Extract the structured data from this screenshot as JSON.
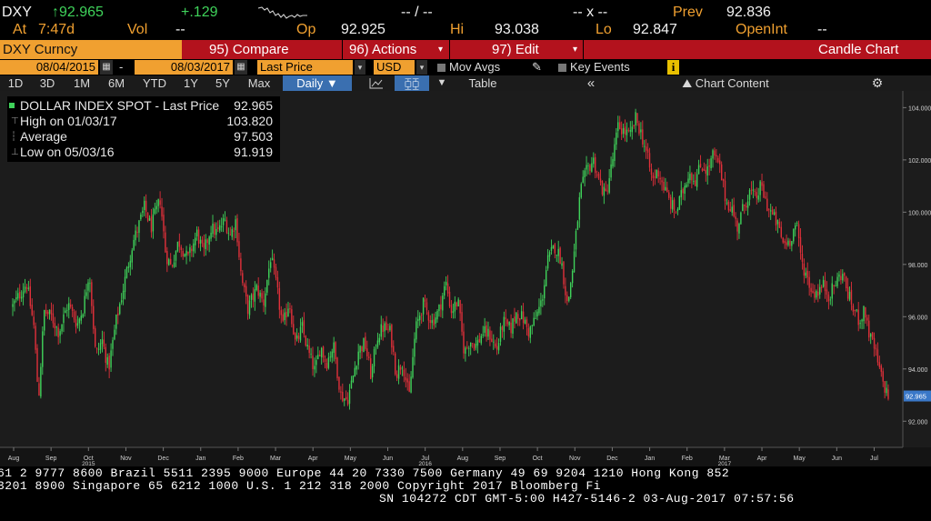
{
  "quote": {
    "ticker": "DXY",
    "last": "92.965",
    "change": "+.129",
    "time_label": "At",
    "time": "7:47d",
    "vol_label": "Vol",
    "vol_value": "--",
    "op_label": "Op",
    "op_value": "92.925",
    "hi_label": "Hi",
    "hi_value": "93.038",
    "lo_label": "Lo",
    "lo_value": "92.847",
    "bidask": "-- / --",
    "x_quote": "-- x --",
    "prev_label": "Prev",
    "prev_value": "92.836",
    "openint_label": "OpenInt",
    "openint_value": "--"
  },
  "cmdbar": {
    "security": "DXY Curncy",
    "compare": "95) Compare",
    "actions": "96) Actions",
    "edit": "97) Edit",
    "title": "Candle Chart"
  },
  "params": {
    "start_date": "08/04/2015",
    "dash": "-",
    "end_date": "08/03/2017",
    "field": "Last Price",
    "currency": "USD",
    "mov_avgs": "Mov Avgs",
    "key_events": "Key Events",
    "info": "i"
  },
  "periods": [
    "1D",
    "3D",
    "1M",
    "6M",
    "YTD",
    "1Y",
    "5Y",
    "Max"
  ],
  "toolbar": {
    "frequency": "Daily",
    "table": "Table",
    "collapse": "«",
    "chart_content": "Chart Content",
    "settings_icon": "gear-icon"
  },
  "legend": {
    "series": "DOLLAR INDEX SPOT - Last Price",
    "series_value": "92.965",
    "high_label": "High on 01/03/17",
    "high_value": "103.820",
    "avg_label": "Average",
    "avg_value": "97.503",
    "low_label": "Low on 05/03/16",
    "low_value": "91.919"
  },
  "ticker_lines": {
    "line1": "61 2 9777 8600 Brazil 5511 2395 9000 Europe 44 20 7330 7500 Germany 49 69 9204 1210 Hong Kong 852",
    "line2": "3201 8900        Singapore 65 6212 1000       U.S. 1 212 318 2000         Copyright 2017 Bloomberg Fi",
    "line3": "SN 104272 CDT  GMT-5:00 H427-5146-2 03-Aug-2017 07:57:56"
  },
  "colors": {
    "up": "#3fd25a",
    "down": "#e0303a",
    "accent": "#f0a030",
    "cmdbar": "#b3121d",
    "chart_bg": "#1c1c1c",
    "last_tag": "#3a78c8"
  },
  "chart_data": {
    "type": "candlestick",
    "title": "",
    "series_name": "DOLLAR INDEX SPOT - Last Price",
    "xlabel": "",
    "ylabel": "",
    "ylim": [
      91.0,
      104.5
    ],
    "yticks": [
      "104.000",
      "102.000",
      "100.000",
      "98.000",
      "96.000",
      "94.000",
      "92.000"
    ],
    "ytick_values": [
      104,
      102,
      100,
      98,
      96,
      94,
      92
    ],
    "last_tag": "92.965",
    "last_value": 92.965,
    "xticks": [
      "Aug",
      "Sep",
      "Oct",
      "Nov",
      "Dec",
      "Jan",
      "Feb",
      "Mar",
      "Apr",
      "May",
      "Jun",
      "Jul",
      "Aug",
      "Sep",
      "Oct",
      "Nov",
      "Dec",
      "Jan",
      "Feb",
      "Mar",
      "Apr",
      "May",
      "Jun",
      "Jul"
    ],
    "year_labels": [
      {
        "after_tick": "Oct",
        "tick_index": 2,
        "label": "2015"
      },
      {
        "after_tick": "Jul",
        "tick_index": 11,
        "label": "2016"
      },
      {
        "after_tick": "Mar",
        "tick_index": 19,
        "label": "2017"
      }
    ],
    "grid": false,
    "y_axis_side": "right",
    "close_path": [
      [
        0,
        96.4
      ],
      [
        1.5,
        97.3
      ],
      [
        2.3,
        95.6
      ],
      [
        2.8,
        92.8
      ],
      [
        3.4,
        96.2
      ],
      [
        4.2,
        96.0
      ],
      [
        5,
        95.4
      ],
      [
        6,
        96.5
      ],
      [
        7,
        95.7
      ],
      [
        7.7,
        96.4
      ],
      [
        8.3,
        97.8
      ],
      [
        9,
        94.5
      ],
      [
        9.7,
        95.1
      ],
      [
        10.4,
        94.0
      ],
      [
        11.2,
        95.8
      ],
      [
        12,
        97.1
      ],
      [
        13,
        98.8
      ],
      [
        13.5,
        99.3
      ],
      [
        14.3,
        100.2
      ],
      [
        15,
        99.4
      ],
      [
        16,
        100.5
      ],
      [
        16.6,
        98.4
      ],
      [
        17.2,
        97.9
      ],
      [
        18,
        98.9
      ],
      [
        19,
        98.2
      ],
      [
        20,
        99.2
      ],
      [
        20.7,
        98.4
      ],
      [
        21.5,
        99.4
      ],
      [
        22.2,
        99.2
      ],
      [
        23,
        99.7
      ],
      [
        23.6,
        99.1
      ],
      [
        24.2,
        99.7
      ],
      [
        24.8,
        97.5
      ],
      [
        25.5,
        96.3
      ],
      [
        26.5,
        97.1
      ],
      [
        27.2,
        96.5
      ],
      [
        28,
        98.3
      ],
      [
        28.6,
        97.2
      ],
      [
        29.3,
        95.6
      ],
      [
        30,
        96.6
      ],
      [
        30.7,
        94.9
      ],
      [
        31.4,
        95.6
      ],
      [
        32.1,
        94.6
      ],
      [
        32.8,
        93.9
      ],
      [
        33.4,
        94.9
      ],
      [
        34,
        94.2
      ],
      [
        34.8,
        94.9
      ],
      [
        35.6,
        93.0
      ],
      [
        36.3,
        92.8
      ],
      [
        36.8,
        93.5
      ],
      [
        37.5,
        94.7
      ],
      [
        38.2,
        95.0
      ],
      [
        38.9,
        93.7
      ],
      [
        39.5,
        95.2
      ],
      [
        40.2,
        95.6
      ],
      [
        41,
        95.4
      ],
      [
        41.6,
        93.8
      ],
      [
        42.3,
        94.3
      ],
      [
        43,
        92.9
      ],
      [
        43.7,
        95.5
      ],
      [
        44.5,
        96.5
      ],
      [
        45.5,
        95.8
      ],
      [
        46.2,
        96.2
      ],
      [
        47,
        97.3
      ],
      [
        47.6,
        96.2
      ],
      [
        48.3,
        96.6
      ],
      [
        49,
        94.6
      ],
      [
        49.6,
        95.1
      ],
      [
        50.3,
        94.9
      ],
      [
        51,
        95.4
      ],
      [
        51.8,
        95.3
      ],
      [
        52.5,
        94.7
      ],
      [
        53.2,
        95.8
      ],
      [
        54,
        95.5
      ],
      [
        54.7,
        96.2
      ],
      [
        55.4,
        95.9
      ],
      [
        56,
        95.4
      ],
      [
        56.7,
        95.9
      ],
      [
        57.4,
        96.6
      ],
      [
        58,
        98.1
      ],
      [
        58.8,
        98.7
      ],
      [
        59.5,
        98.2
      ],
      [
        60.2,
        96.4
      ],
      [
        60.8,
        98.0
      ],
      [
        61.6,
        100.8
      ],
      [
        62.3,
        101.6
      ],
      [
        63,
        102.0
      ],
      [
        63.6,
        101.2
      ],
      [
        64.3,
        100.6
      ],
      [
        65,
        101.8
      ],
      [
        65.7,
        103.3
      ],
      [
        66.3,
        103.1
      ],
      [
        67,
        102.9
      ],
      [
        67.6,
        103.6
      ],
      [
        68.2,
        103.0
      ],
      [
        68.8,
        102.2
      ],
      [
        69.4,
        101.2
      ],
      [
        70,
        101.6
      ],
      [
        70.7,
        100.9
      ],
      [
        71.4,
        100.3
      ],
      [
        72,
        100.0
      ],
      [
        72.7,
        100.8
      ],
      [
        73.4,
        101.6
      ],
      [
        74,
        101.2
      ],
      [
        74.7,
        101.8
      ],
      [
        75.4,
        101.6
      ],
      [
        76,
        102.2
      ],
      [
        76.7,
        101.7
      ],
      [
        77.4,
        100.4
      ],
      [
        78,
        100.2
      ],
      [
        78.6,
        99.4
      ],
      [
        79.3,
        100.2
      ],
      [
        80,
        100.8
      ],
      [
        80.6,
        100.5
      ],
      [
        81.2,
        101.0
      ],
      [
        81.8,
        100.3
      ],
      [
        82.4,
        99.9
      ],
      [
        83,
        99.5
      ],
      [
        83.6,
        98.8
      ],
      [
        84.3,
        98.9
      ],
      [
        85,
        99.6
      ],
      [
        85.6,
        98.1
      ],
      [
        86.2,
        97.5
      ],
      [
        86.8,
        96.9
      ],
      [
        87.4,
        97.0
      ],
      [
        88,
        97.2
      ],
      [
        88.6,
        96.8
      ],
      [
        89.3,
        97.3
      ],
      [
        90,
        97.7
      ],
      [
        90.6,
        96.9
      ],
      [
        91.2,
        96.3
      ],
      [
        91.8,
        95.9
      ],
      [
        92.5,
        96.2
      ],
      [
        93,
        95.2
      ],
      [
        93.5,
        94.8
      ],
      [
        94,
        94.0
      ],
      [
        94.5,
        93.4
      ],
      [
        95,
        92.965
      ]
    ]
  }
}
